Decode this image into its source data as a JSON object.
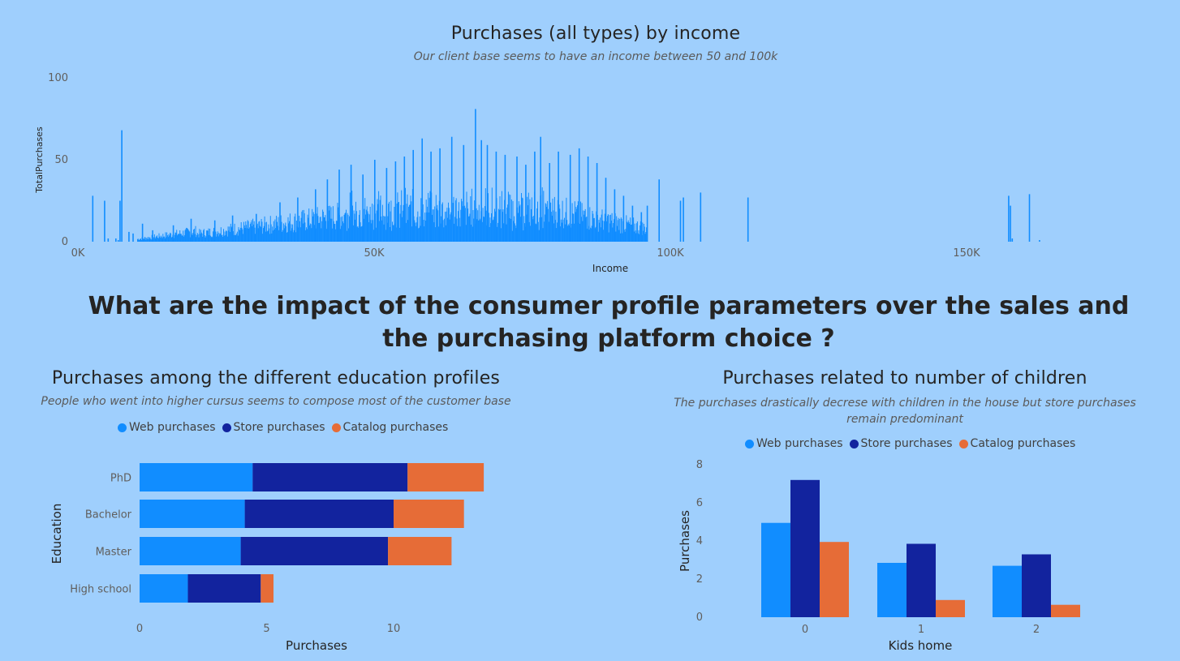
{
  "headline": "What are the impact of the consumer profile parameters over the sales and the purchasing platform choice ?",
  "colors": {
    "web": "#118dff",
    "store": "#12239e",
    "catalog": "#e66c37",
    "background": "#9fcffd"
  },
  "chart_data": [
    {
      "type": "bar",
      "title": "Purchases (all types) by income",
      "subtitle": "Our client base seems to have an income between 50 and 100k",
      "xlabel": "Income",
      "ylabel": "TotalPurchases",
      "xlim": [
        0,
        165000
      ],
      "ylim": [
        0,
        100
      ],
      "x_ticks": [
        0,
        50000,
        100000,
        150000
      ],
      "x_tick_labels": [
        "0K",
        "50K",
        "100K",
        "150K"
      ],
      "y_ticks": [
        0,
        50,
        100
      ],
      "y_tick_labels": [
        "0",
        "50",
        "100"
      ],
      "grid": false,
      "spikes": [
        {
          "x": 2400,
          "y": 28
        },
        {
          "x": 4400,
          "y": 25
        },
        {
          "x": 5000,
          "y": 2
        },
        {
          "x": 6300,
          "y": 2
        },
        {
          "x": 6700,
          "y": 1
        },
        {
          "x": 7000,
          "y": 25
        },
        {
          "x": 7300,
          "y": 68
        },
        {
          "x": 8500,
          "y": 6
        },
        {
          "x": 9200,
          "y": 5
        },
        {
          "x": 10800,
          "y": 11
        },
        {
          "x": 12500,
          "y": 7
        },
        {
          "x": 16000,
          "y": 10
        },
        {
          "x": 19000,
          "y": 14
        },
        {
          "x": 23000,
          "y": 13
        },
        {
          "x": 26000,
          "y": 16
        },
        {
          "x": 30000,
          "y": 17
        },
        {
          "x": 34000,
          "y": 24
        },
        {
          "x": 37000,
          "y": 27
        },
        {
          "x": 40000,
          "y": 32
        },
        {
          "x": 42000,
          "y": 38
        },
        {
          "x": 44000,
          "y": 44
        },
        {
          "x": 46000,
          "y": 47
        },
        {
          "x": 48000,
          "y": 41
        },
        {
          "x": 50000,
          "y": 50
        },
        {
          "x": 52000,
          "y": 45
        },
        {
          "x": 53500,
          "y": 49
        },
        {
          "x": 55000,
          "y": 52
        },
        {
          "x": 56500,
          "y": 56
        },
        {
          "x": 58000,
          "y": 63
        },
        {
          "x": 59500,
          "y": 55
        },
        {
          "x": 61000,
          "y": 57
        },
        {
          "x": 63000,
          "y": 64
        },
        {
          "x": 65000,
          "y": 59
        },
        {
          "x": 67000,
          "y": 81
        },
        {
          "x": 68000,
          "y": 62
        },
        {
          "x": 69000,
          "y": 59
        },
        {
          "x": 70500,
          "y": 55
        },
        {
          "x": 72000,
          "y": 53
        },
        {
          "x": 74000,
          "y": 52
        },
        {
          "x": 75500,
          "y": 47
        },
        {
          "x": 77000,
          "y": 55
        },
        {
          "x": 78000,
          "y": 64
        },
        {
          "x": 79500,
          "y": 48
        },
        {
          "x": 81000,
          "y": 55
        },
        {
          "x": 83000,
          "y": 53
        },
        {
          "x": 84500,
          "y": 57
        },
        {
          "x": 86000,
          "y": 52
        },
        {
          "x": 87500,
          "y": 48
        },
        {
          "x": 89000,
          "y": 39
        },
        {
          "x": 90500,
          "y": 32
        },
        {
          "x": 92000,
          "y": 28
        },
        {
          "x": 93500,
          "y": 22
        },
        {
          "x": 95000,
          "y": 18
        },
        {
          "x": 96000,
          "y": 22
        },
        {
          "x": 98000,
          "y": 38
        },
        {
          "x": 101600,
          "y": 25
        },
        {
          "x": 102100,
          "y": 27
        },
        {
          "x": 105000,
          "y": 30
        },
        {
          "x": 113000,
          "y": 27
        },
        {
          "x": 157000,
          "y": 28
        },
        {
          "x": 157300,
          "y": 22
        },
        {
          "x": 157600,
          "y": 2
        },
        {
          "x": 160500,
          "y": 29
        },
        {
          "x": 162200,
          "y": 1
        }
      ]
    },
    {
      "type": "bar",
      "orientation": "horizontal",
      "stacked": true,
      "title": "Purchases among the different education profiles",
      "subtitle": "People who went into higher cursus seems to compose most of the customer base",
      "xlabel": "Purchases",
      "ylabel": "Education",
      "categories": [
        "PhD",
        "Bachelor",
        "Master",
        "High school"
      ],
      "series": [
        {
          "name": "Web purchases",
          "values": [
            4.45,
            4.14,
            3.98,
            1.9
          ]
        },
        {
          "name": "Store purchases",
          "values": [
            6.1,
            5.86,
            5.8,
            2.87
          ]
        },
        {
          "name": "Catalog purchases",
          "values": [
            3.0,
            2.77,
            2.5,
            0.5
          ]
        }
      ],
      "xlim": [
        0,
        15
      ],
      "x_ticks": [
        0,
        5,
        10
      ],
      "x_tick_labels": [
        "0",
        "5",
        "10"
      ],
      "legend": "top"
    },
    {
      "type": "bar",
      "orientation": "vertical",
      "stacked": false,
      "title": "Purchases related to number of children",
      "subtitle": "The purchases drastically decrese with children in the house but store purchases remain predominant",
      "xlabel": "Kids home",
      "ylabel": "Purchases",
      "categories": [
        "0",
        "1",
        "2"
      ],
      "series": [
        {
          "name": "Web purchases",
          "values": [
            4.95,
            2.85,
            2.7
          ]
        },
        {
          "name": "Store purchases",
          "values": [
            7.2,
            3.85,
            3.3
          ]
        },
        {
          "name": "Catalog purchases",
          "values": [
            3.95,
            0.9,
            0.65
          ]
        }
      ],
      "ylim": [
        0,
        8
      ],
      "y_ticks": [
        0,
        2,
        4,
        6,
        8
      ],
      "y_tick_labels": [
        "0",
        "2",
        "4",
        "6",
        "8"
      ],
      "legend": "top"
    }
  ]
}
